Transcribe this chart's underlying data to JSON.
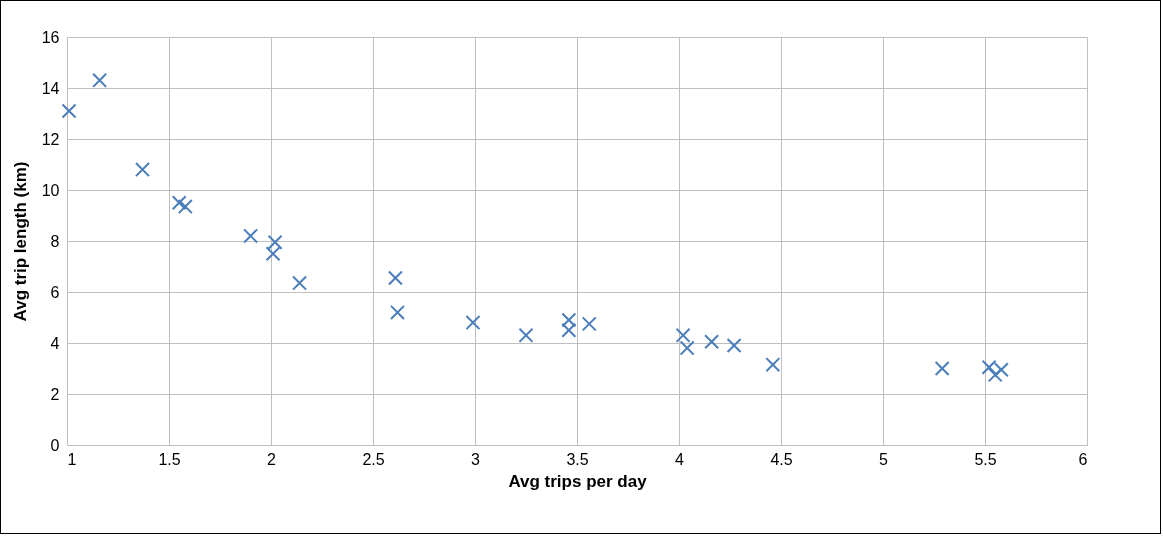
{
  "chart_data": {
    "type": "scatter",
    "xlabel": "Avg trips per day",
    "ylabel": "Avg trip length (km)",
    "x": [
      1.01,
      1.16,
      1.37,
      1.55,
      1.58,
      1.9,
      2.02,
      2.01,
      2.14,
      2.61,
      2.62,
      2.99,
      3.25,
      3.46,
      3.46,
      3.56,
      4.02,
      4.04,
      4.16,
      4.27,
      4.46,
      5.29,
      5.52,
      5.55,
      5.58
    ],
    "series": [
      {
        "color": "#4a7ebb",
        "values": [
          13.1,
          14.3,
          10.8,
          9.5,
          9.35,
          8.2,
          7.95,
          7.5,
          6.35,
          6.55,
          5.2,
          4.8,
          4.3,
          4.9,
          4.5,
          4.75,
          4.3,
          3.8,
          4.05,
          3.9,
          3.15,
          3.0,
          3.05,
          2.75,
          2.95
        ]
      }
    ],
    "xlim": [
      1,
      6
    ],
    "xticks": [
      1,
      1.5,
      2,
      2.5,
      3,
      3.5,
      4,
      4.5,
      5,
      5.5,
      6
    ],
    "ylim": [
      0,
      16
    ],
    "yticks": [
      0,
      2,
      4,
      6,
      8,
      10,
      12,
      14,
      16
    ],
    "grid": true,
    "marker": "cross"
  }
}
